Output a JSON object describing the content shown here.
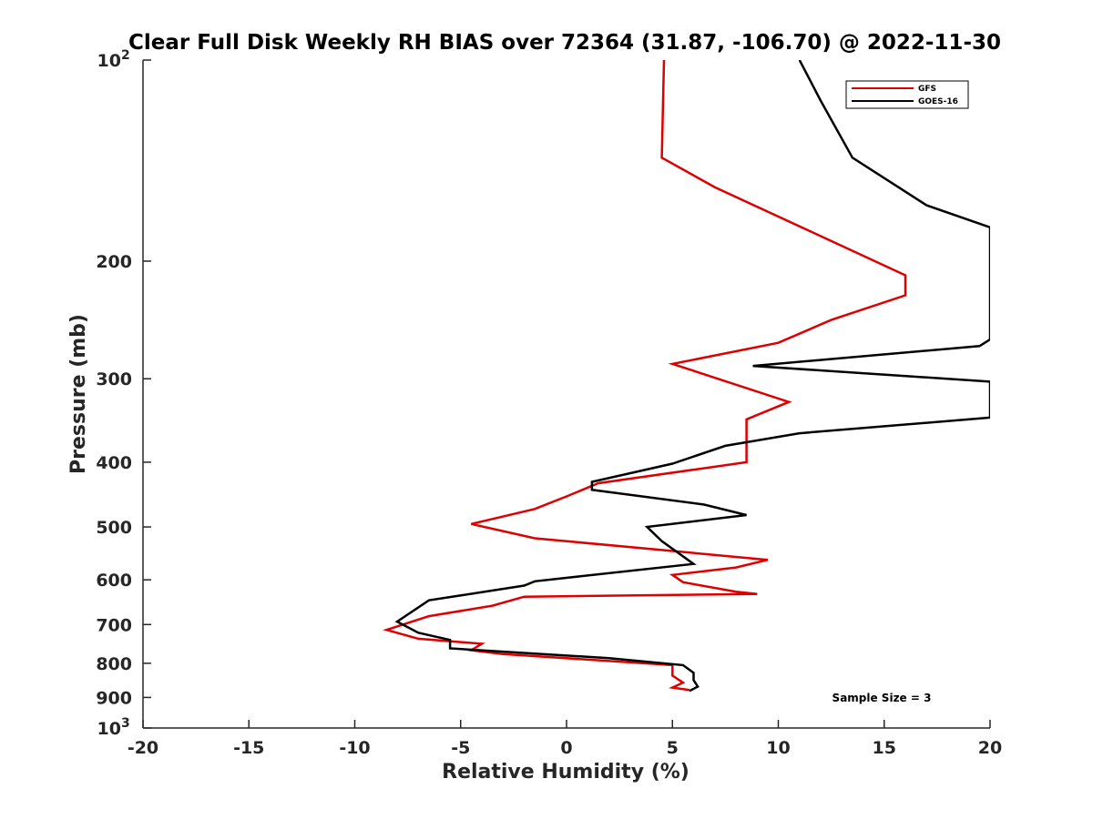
{
  "chart_data": {
    "type": "line",
    "title": "Clear Full Disk Weekly RH BIAS over 72364 (31.87, -106.70) @ 2022-11-30",
    "xlabel": "Relative Humidity (%)",
    "ylabel": "Pressure (mb)",
    "xlim": [
      -20,
      20
    ],
    "ylim": [
      100,
      1000
    ],
    "y_scale": "log",
    "y_reversed": true,
    "grid": false,
    "legend_position": "top-right",
    "x_ticks": [
      {
        "value": -20,
        "label": "-20"
      },
      {
        "value": -15,
        "label": "-15"
      },
      {
        "value": -10,
        "label": "-10"
      },
      {
        "value": -5,
        "label": "-5"
      },
      {
        "value": 0,
        "label": "0"
      },
      {
        "value": 5,
        "label": "5"
      },
      {
        "value": 10,
        "label": "10"
      },
      {
        "value": 15,
        "label": "15"
      },
      {
        "value": 20,
        "label": "20"
      }
    ],
    "y_ticks": [
      {
        "value": 100,
        "label": "10",
        "exp": "2"
      },
      {
        "value": 200,
        "label": "200"
      },
      {
        "value": 300,
        "label": "300"
      },
      {
        "value": 400,
        "label": "400"
      },
      {
        "value": 500,
        "label": "500"
      },
      {
        "value": 600,
        "label": "600"
      },
      {
        "value": 700,
        "label": "700"
      },
      {
        "value": 800,
        "label": "800"
      },
      {
        "value": 900,
        "label": "900"
      },
      {
        "value": 1000,
        "label": "10",
        "exp": "3"
      }
    ],
    "annotation": "Sample Size = 3",
    "series": [
      {
        "name": "GFS",
        "color": "#dd0000",
        "points": [
          [
            4.6,
            100
          ],
          [
            4.5,
            140
          ],
          [
            7.0,
            155
          ],
          [
            16.0,
            210
          ],
          [
            16.0,
            225
          ],
          [
            12.5,
            245
          ],
          [
            10.0,
            265
          ],
          [
            5.0,
            285
          ],
          [
            10.5,
            325
          ],
          [
            8.5,
            345
          ],
          [
            8.5,
            400
          ],
          [
            1.5,
            430
          ],
          [
            0.0,
            450
          ],
          [
            -1.5,
            470
          ],
          [
            -4.5,
            495
          ],
          [
            -1.5,
            520
          ],
          [
            9.5,
            560
          ],
          [
            8.0,
            575
          ],
          [
            5.0,
            590
          ],
          [
            5.5,
            605
          ],
          [
            8.0,
            625
          ],
          [
            9.0,
            630
          ],
          [
            -2.0,
            636
          ],
          [
            -3.5,
            656
          ],
          [
            -6.5,
            680
          ],
          [
            -8.5,
            713
          ],
          [
            -7.0,
            735
          ],
          [
            -4.0,
            748
          ],
          [
            -4.5,
            765
          ],
          [
            -3.0,
            775
          ],
          [
            5.0,
            805
          ],
          [
            5.0,
            835
          ],
          [
            5.5,
            855
          ],
          [
            5.0,
            870
          ],
          [
            5.8,
            877
          ]
        ]
      },
      {
        "name": "GOES-16",
        "color": "#000000",
        "points": [
          [
            11.0,
            100
          ],
          [
            12.0,
            115
          ],
          [
            13.5,
            140
          ],
          [
            17.0,
            165
          ],
          [
            20.0,
            178
          ],
          [
            20.0,
            262
          ],
          [
            19.5,
            268
          ],
          [
            8.8,
            287
          ],
          [
            20.0,
            303
          ],
          [
            20.0,
            343
          ],
          [
            11.0,
            362
          ],
          [
            7.5,
            378
          ],
          [
            5.0,
            402
          ],
          [
            1.2,
            428
          ],
          [
            1.2,
            440
          ],
          [
            6.5,
            463
          ],
          [
            8.5,
            480
          ],
          [
            3.8,
            500
          ],
          [
            4.5,
            525
          ],
          [
            6.0,
            568
          ],
          [
            -1.5,
            603
          ],
          [
            -2.0,
            612
          ],
          [
            -6.5,
            644
          ],
          [
            -8.0,
            693
          ],
          [
            -7.0,
            720
          ],
          [
            -5.5,
            738
          ],
          [
            -5.5,
            760
          ],
          [
            2.0,
            786
          ],
          [
            5.5,
            805
          ],
          [
            6.0,
            827
          ],
          [
            6.0,
            848
          ],
          [
            6.2,
            867
          ],
          [
            5.8,
            880
          ]
        ]
      }
    ]
  }
}
